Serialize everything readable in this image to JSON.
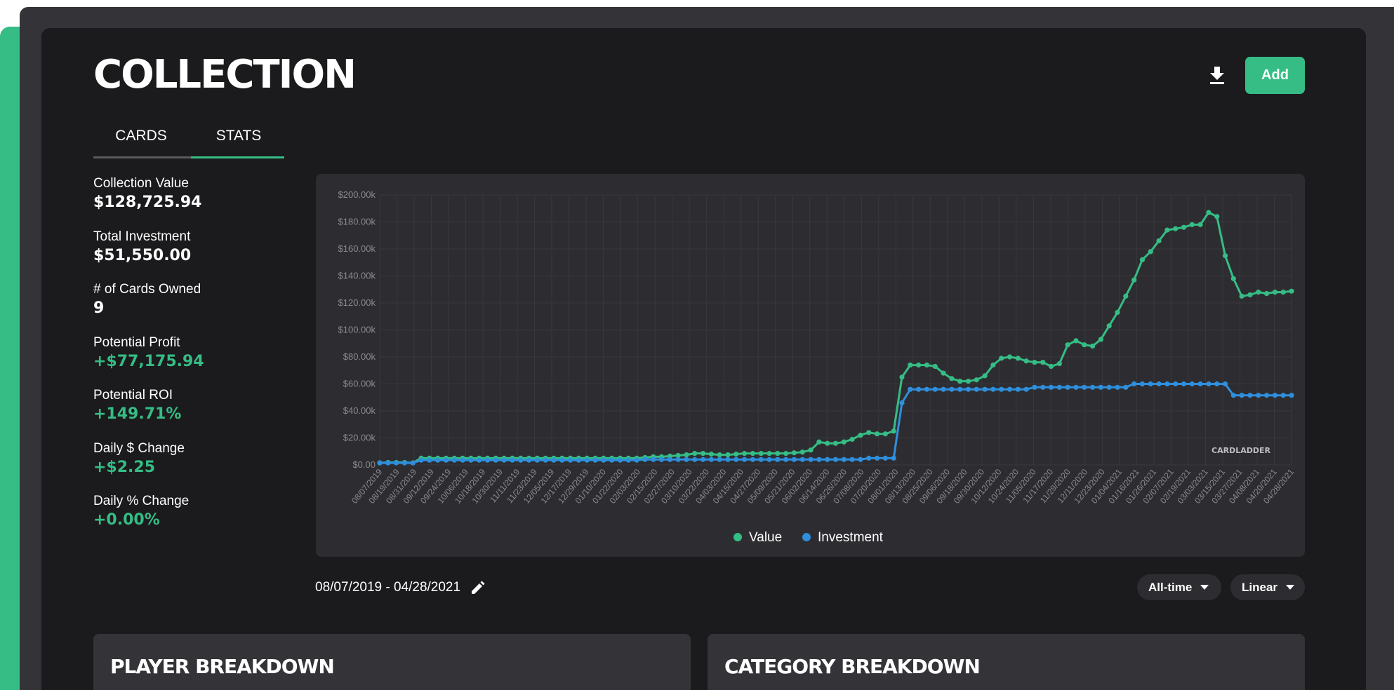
{
  "header": {
    "title": "COLLECTION",
    "add_label": "Add",
    "download_icon": "download-icon"
  },
  "tabs": [
    {
      "label": "CARDS",
      "active": false
    },
    {
      "label": "STATS",
      "active": true
    }
  ],
  "stats": [
    {
      "label": "Collection Value",
      "value": "$128,725.94",
      "color": "white"
    },
    {
      "label": "Total Investment",
      "value": "$51,550.00",
      "color": "white"
    },
    {
      "label": "# of Cards Owned",
      "value": "9",
      "color": "white"
    },
    {
      "label": "Potential Profit",
      "value": "+$77,175.94",
      "color": "green"
    },
    {
      "label": "Potential ROI",
      "value": "+149.71%",
      "color": "green"
    },
    {
      "label": "Daily $ Change",
      "value": "+$2.25",
      "color": "green"
    },
    {
      "label": "Daily % Change",
      "value": "+0.00%",
      "color": "green"
    }
  ],
  "colors": {
    "accent": "#35bd85",
    "value_series": "#35bd85",
    "investment_series": "#2f8fdd",
    "panel_bg": "#1b1b1d",
    "chart_bg": "#2d2d31"
  },
  "chart_data": {
    "type": "line",
    "title": "",
    "xlabel": "",
    "ylabel": "",
    "ylim": [
      0,
      200000
    ],
    "yticks": [
      "$0.00",
      "$20.00k",
      "$40.00k",
      "$60.00k",
      "$80.00k",
      "$100.00k",
      "$120.00k",
      "$140.00k",
      "$160.00k",
      "$180.00k",
      "$200.00k"
    ],
    "x_tick_labels": [
      "08/07/2019",
      "08/19/2019",
      "08/31/2019",
      "09/12/2019",
      "09/24/2019",
      "10/06/2019",
      "10/18/2019",
      "10/30/2019",
      "11/11/2019",
      "11/23/2019",
      "12/05/2019",
      "12/17/2019",
      "12/29/2019",
      "01/10/2020",
      "01/22/2020",
      "02/03/2020",
      "02/15/2020",
      "02/27/2020",
      "03/10/2020",
      "03/22/2020",
      "04/03/2020",
      "04/15/2020",
      "04/27/2020",
      "05/09/2020",
      "05/21/2020",
      "06/02/2020",
      "06/14/2020",
      "06/26/2020",
      "07/08/2020",
      "07/20/2020",
      "08/01/2020",
      "08/13/2020",
      "08/25/2020",
      "09/06/2020",
      "09/18/2020",
      "09/30/2020",
      "10/12/2020",
      "10/24/2020",
      "11/05/2020",
      "11/17/2020",
      "11/29/2020",
      "12/11/2020",
      "12/23/2020",
      "01/04/2021",
      "01/16/2021",
      "01/26/2021",
      "02/07/2021",
      "02/19/2021",
      "03/03/2021",
      "03/15/2021",
      "03/27/2021",
      "04/08/2021",
      "04/20/2021",
      "04/28/2021"
    ],
    "grid": true,
    "legend_position": "bottom-center",
    "watermark": "CARDLADDER",
    "series": [
      {
        "name": "Value",
        "color": "#35bd85",
        "values": [
          1500,
          1800,
          1800,
          1800,
          1500,
          5000,
          5000,
          5000,
          5000,
          5000,
          5000,
          5000,
          5000,
          5000,
          5000,
          5000,
          5000,
          5000,
          5000,
          5000,
          5000,
          5000,
          5000,
          5000,
          5000,
          5000,
          5000,
          5000,
          5000,
          5000,
          5000,
          5000,
          5500,
          6000,
          6000,
          6500,
          7000,
          7500,
          8500,
          8500,
          8000,
          7500,
          7500,
          8000,
          8500,
          8500,
          8500,
          8500,
          8500,
          8500,
          9000,
          9500,
          11000,
          17000,
          16000,
          16000,
          17000,
          19000,
          22000,
          24000,
          23000,
          23000,
          25000,
          65000,
          74000,
          74000,
          74000,
          73000,
          68000,
          64000,
          62000,
          62000,
          63000,
          66000,
          74000,
          79000,
          80000,
          79000,
          77000,
          76000,
          76000,
          73000,
          75000,
          89000,
          92000,
          89000,
          88000,
          93000,
          103000,
          113000,
          125000,
          137000,
          152000,
          158000,
          166000,
          174000,
          175000,
          176000,
          178000,
          178000,
          187000,
          184000,
          155000,
          138000,
          125000,
          126000,
          128000,
          127000,
          128000,
          128000,
          128726
        ]
      },
      {
        "name": "Investment",
        "color": "#2f8fdd",
        "values": [
          1500,
          1500,
          1500,
          1500,
          1500,
          3500,
          3500,
          3500,
          3500,
          3500,
          3500,
          3500,
          3500,
          3500,
          3500,
          3500,
          3500,
          3500,
          3500,
          3500,
          3500,
          3500,
          3500,
          3500,
          3500,
          3500,
          3500,
          3500,
          3500,
          3500,
          3500,
          3500,
          4000,
          4000,
          4000,
          4000,
          4000,
          4000,
          4000,
          4000,
          4000,
          4000,
          4000,
          4000,
          4000,
          4000,
          4000,
          4000,
          4000,
          4000,
          4000,
          4000,
          4000,
          4000,
          4000,
          4000,
          4000,
          4000,
          4000,
          5000,
          5000,
          5000,
          5000,
          46000,
          56000,
          56000,
          56000,
          56000,
          56000,
          56000,
          56000,
          56000,
          56000,
          56000,
          56000,
          56000,
          56000,
          56000,
          56000,
          57500,
          57500,
          57500,
          57500,
          57500,
          57500,
          57500,
          57500,
          57500,
          57500,
          57500,
          57500,
          60000,
          60000,
          60000,
          60000,
          60000,
          60000,
          60000,
          60000,
          60000,
          60000,
          60000,
          60000,
          51550,
          51550,
          51550,
          51550,
          51550,
          51550,
          51550,
          51550
        ]
      }
    ]
  },
  "date_range": {
    "text": "08/07/2019 - 04/28/2021",
    "edit_icon": "pencil-icon"
  },
  "controls": {
    "range_selected": "All-time",
    "scale_selected": "Linear"
  },
  "sections": {
    "player_title": "PLAYER BREAKDOWN",
    "category_title": "CATEGORY BREAKDOWN"
  }
}
